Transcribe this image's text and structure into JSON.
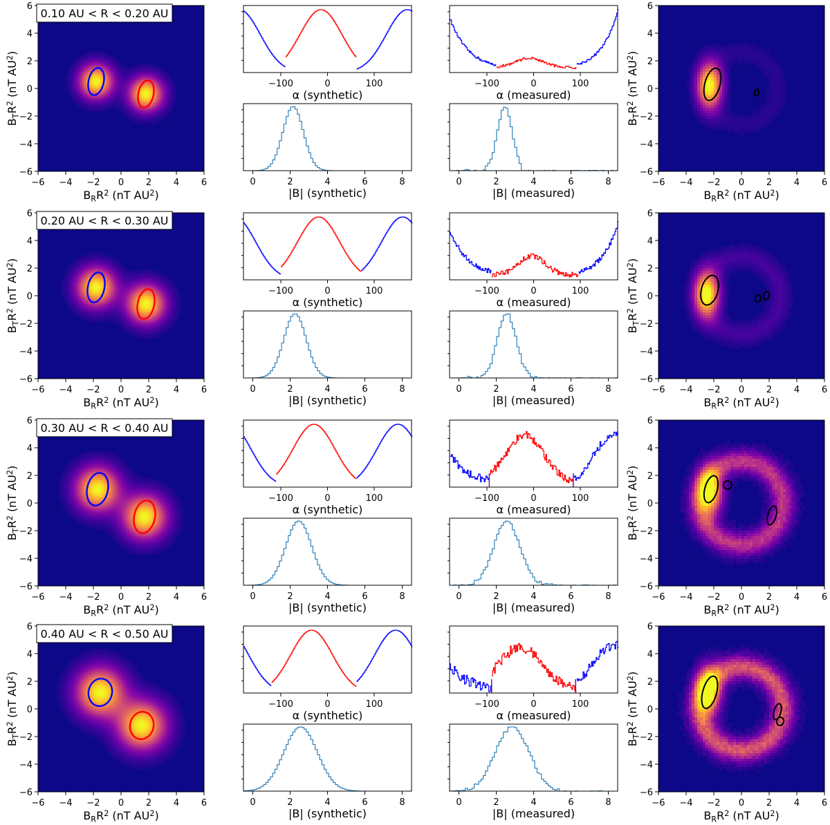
{
  "chart_data": {
    "type": "figure-grid",
    "colors": {
      "positive_sector": "#ff0000",
      "negative_sector": "#0000ff",
      "measured_contour": "#000000",
      "magnitude_hist": "#1f77b4",
      "colormap_low": "#0d0887",
      "colormap_high": "#f0f921",
      "boundary_marker": "#7b0fa0"
    },
    "shared_axes": {
      "map_xlabel": "B_RR^2 (nT AU^2)",
      "map_ylabel": "B_TR^2 (nT AU^2)",
      "map_xticks": [
        -6,
        -4,
        -2,
        0,
        2,
        4,
        6
      ],
      "map_yticks": [
        -6,
        -4,
        -2,
        0,
        2,
        4,
        6
      ],
      "map_xlim": [
        -6,
        6
      ],
      "map_ylim": [
        -6,
        6
      ],
      "alpha_syn_xlabel": "α (synthetic)",
      "alpha_meas_xlabel": "α (measured)",
      "alpha_xticks": [
        -100,
        0,
        100
      ],
      "alpha_xlim": [
        -180,
        180
      ],
      "b_syn_xlabel": "|B| (synthetic)",
      "b_meas_xlabel": "|B| (measured)",
      "b_xticks": [
        0,
        2,
        4,
        6,
        8
      ],
      "b_xlim": [
        -0.5,
        8.5
      ]
    },
    "rows": [
      {
        "label": "0.10 AU < R < 0.20 AU",
        "synthetic_map": {
          "blue_center": [
            -1.8,
            0.5
          ],
          "red_center": [
            1.8,
            -0.4
          ],
          "sigma": 0.7,
          "contour_radius": [
            0.55,
            1.0
          ]
        },
        "alpha_synthetic": {
          "red_peak": -15,
          "red_width": 45,
          "blue_peak": 170,
          "blue_width": 45,
          "red_range": [
            -90,
            60
          ],
          "boundary": null
        },
        "alpha_measured": {
          "red_peak": -10,
          "red_amp": 0.15,
          "red_width": 30,
          "blue_edge_amp": 0.95,
          "red_range": [
            -80,
            90
          ],
          "boundary": null
        },
        "b_synthetic": {
          "peak": 2.1,
          "width": 0.55
        },
        "b_measured": {
          "peak": 2.4,
          "width": 0.4,
          "cutoff": 3.3
        },
        "measured_map": {
          "hot_center": [
            -2.3,
            0.2
          ],
          "ring_radius": 2.6,
          "ring_strength": 0.05,
          "contours": [
            [
              -2.1,
              0.3,
              0.55,
              1.2
            ],
            [
              1.1,
              -0.3,
              0.15,
              0.25
            ]
          ]
        }
      },
      {
        "label": "0.20 AU < R < 0.30 AU",
        "synthetic_map": {
          "blue_center": [
            -1.8,
            0.6
          ],
          "red_center": [
            1.8,
            -0.6
          ],
          "sigma": 0.8,
          "contour_radius": [
            0.6,
            1.1
          ]
        },
        "alpha_synthetic": {
          "red_peak": -20,
          "red_width": 45,
          "blue_peak": 160,
          "blue_width": 45,
          "red_range": [
            -100,
            70
          ],
          "boundary": null
        },
        "alpha_measured": {
          "red_peak": -5,
          "red_amp": 0.3,
          "red_width": 28,
          "blue_edge_amp": 0.85,
          "red_range": [
            -90,
            95
          ],
          "boundary": null
        },
        "b_synthetic": {
          "peak": 2.2,
          "width": 0.6
        },
        "b_measured": {
          "peak": 2.5,
          "width": 0.5,
          "cutoff": 4.2
        },
        "measured_map": {
          "hot_center": [
            -2.5,
            0.1
          ],
          "ring_radius": 2.8,
          "ring_strength": 0.1,
          "contours": [
            [
              -2.3,
              0.4,
              0.6,
              1.1
            ],
            [
              1.2,
              -0.2,
              0.2,
              0.25
            ],
            [
              1.8,
              0.0,
              0.2,
              0.3
            ]
          ]
        }
      },
      {
        "label": "0.30 AU < R < 0.40 AU",
        "synthetic_map": {
          "blue_center": [
            -1.7,
            1.0
          ],
          "red_center": [
            1.7,
            -1.0
          ],
          "sigma": 0.9,
          "contour_radius": [
            0.75,
            1.2
          ]
        },
        "alpha_synthetic": {
          "red_peak": -30,
          "red_width": 45,
          "blue_peak": 150,
          "blue_width": 45,
          "red_range": [
            -110,
            60
          ],
          "boundary": null
        },
        "alpha_measured": {
          "red_peak": -20,
          "red_amp": 0.75,
          "red_width": 40,
          "blue_edge_amp": 0.55,
          "red_range": [
            -95,
            85
          ],
          "boundary": [
            -95,
            85
          ]
        },
        "b_synthetic": {
          "peak": 2.4,
          "width": 0.7
        },
        "b_measured": {
          "peak": 2.5,
          "width": 0.7,
          "cutoff": 5.0
        },
        "measured_map": {
          "hot_center": [
            -2.3,
            0.8
          ],
          "ring_radius": 3.0,
          "ring_strength": 0.4,
          "contours": [
            [
              -2.2,
              1.0,
              0.45,
              1.0
            ],
            [
              -1.0,
              1.3,
              0.3,
              0.3
            ],
            [
              2.2,
              -0.9,
              0.3,
              0.7
            ]
          ]
        }
      },
      {
        "label": "0.40 AU < R < 0.50 AU",
        "synthetic_map": {
          "blue_center": [
            -1.5,
            1.2
          ],
          "red_center": [
            1.5,
            -1.2
          ],
          "sigma": 1.0,
          "contour_radius": [
            0.85,
            1.0
          ]
        },
        "alpha_synthetic": {
          "red_peak": -35,
          "red_width": 45,
          "blue_peak": 145,
          "blue_width": 45,
          "red_range": [
            -120,
            60
          ],
          "boundary": null
        },
        "alpha_measured": {
          "red_peak": -30,
          "red_amp": 0.65,
          "red_width": 45,
          "blue_edge_amp": 0.45,
          "red_range": [
            -90,
            90
          ],
          "boundary": [
            -90,
            90
          ]
        },
        "b_synthetic": {
          "peak": 2.5,
          "width": 0.9
        },
        "b_measured": {
          "peak": 2.8,
          "width": 0.9,
          "cutoff": 5.5
        },
        "measured_map": {
          "hot_center": [
            -2.4,
            1.3
          ],
          "ring_radius": 3.0,
          "ring_strength": 0.5,
          "contours": [
            [
              -2.3,
              1.2,
              0.5,
              1.2
            ],
            [
              2.6,
              -0.2,
              0.25,
              0.6
            ],
            [
              2.8,
              -0.9,
              0.25,
              0.3
            ]
          ]
        }
      }
    ]
  }
}
